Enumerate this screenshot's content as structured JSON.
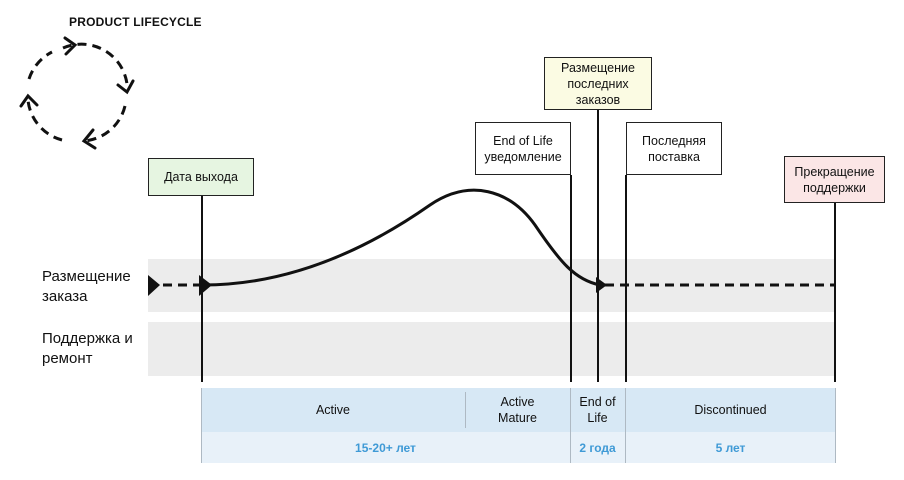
{
  "title": "PRODUCT LIFECYCLE",
  "rows": {
    "order": "Размещение заказа",
    "support": "Поддержка и ремонт"
  },
  "milestones": {
    "release": "Дата выхода",
    "eol_notice": "End of Life уведомление",
    "last_orders": "Размещение последних заказов",
    "last_delivery": "Последняя поставка",
    "end_support": "Прекращение поддержки"
  },
  "phases": {
    "active": "Active",
    "active_mature": "Active Mature",
    "end_of_life": "End of Life",
    "discontinued": "Discontinued"
  },
  "durations": {
    "active": "15-20+ лет",
    "end_of_life": "2 года",
    "discontinued": "5 лет"
  },
  "colors": {
    "release_box": "#e6f5e1",
    "last_orders_box": "#fbfbe3",
    "end_support_box": "#fbe6e6",
    "phase_fill": "#d7e8f5",
    "duration_fill": "#e8f1f9",
    "duration_text": "#3f9ad6"
  }
}
